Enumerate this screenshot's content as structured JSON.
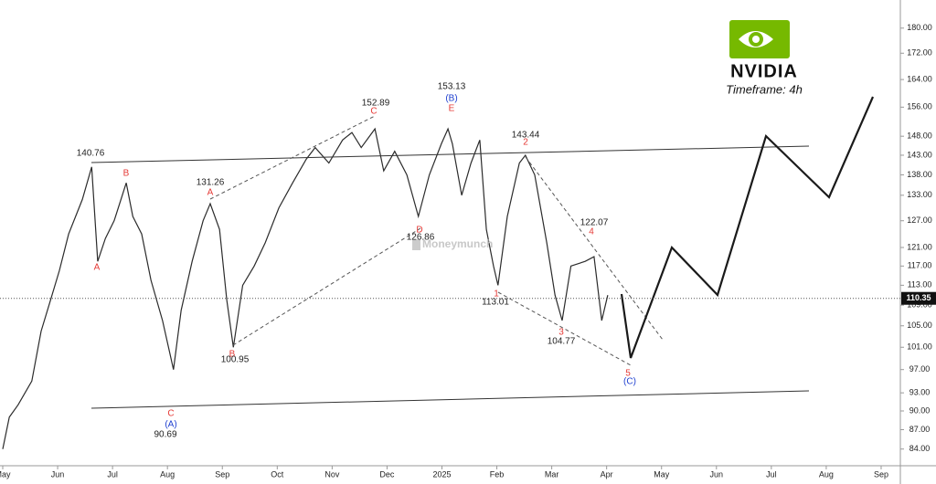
{
  "chart_data": {
    "type": "line",
    "brand": "NVIDIA",
    "subtitle": "Timeframe: 4h",
    "watermark": "Moneymunch",
    "log_scale": true,
    "color": "#2b2b2b",
    "x": [
      0.0,
      0.12,
      0.28,
      0.53,
      0.7,
      0.87,
      1.03,
      1.2,
      1.45,
      1.62,
      1.73,
      1.87,
      2.03,
      2.25,
      2.37,
      2.53,
      2.7,
      2.91,
      3.11,
      3.25,
      3.45,
      3.65,
      3.78,
      3.95,
      4.08,
      4.2,
      4.37,
      4.58,
      4.78,
      5.03,
      5.28,
      5.53,
      5.69,
      5.94,
      6.19,
      6.36,
      6.53,
      6.78,
      6.94,
      7.14,
      7.36,
      7.57,
      7.77,
      7.99,
      8.11,
      8.19,
      8.36,
      8.53,
      8.69,
      8.81,
      8.94,
      9.02,
      9.19,
      9.41,
      9.52,
      9.69,
      9.91,
      10.06,
      10.19,
      10.35,
      10.61,
      10.77,
      10.91,
      11.02
    ],
    "values": [
      84,
      89,
      91,
      95,
      104,
      110,
      116,
      124,
      132,
      140,
      118,
      123,
      127,
      136,
      128,
      124,
      114,
      106,
      97,
      108,
      118,
      127,
      131,
      125,
      110,
      101,
      113,
      117,
      122,
      130,
      136,
      142,
      145,
      141,
      147,
      149,
      145,
      150,
      139,
      144,
      138,
      128,
      138,
      146,
      150,
      146,
      133,
      141,
      147,
      125,
      117,
      113,
      128,
      141,
      143,
      138,
      122,
      111,
      106,
      117,
      118,
      119,
      106,
      111
    ],
    "current_price": 110.35,
    "current_price_label": "110.35",
    "xlim": [
      -0.05,
      16.35
    ],
    "xticks": [
      {
        "value": 0,
        "label": "May"
      },
      {
        "value": 1,
        "label": "Jun"
      },
      {
        "value": 2,
        "label": "Jul"
      },
      {
        "value": 3,
        "label": "Aug"
      },
      {
        "value": 4,
        "label": "Sep"
      },
      {
        "value": 5,
        "label": "Oct"
      },
      {
        "value": 6,
        "label": "Nov"
      },
      {
        "value": 7,
        "label": "Dec"
      },
      {
        "value": 8,
        "label": "2025"
      },
      {
        "value": 9,
        "label": "Feb"
      },
      {
        "value": 10,
        "label": "Mar"
      },
      {
        "value": 11,
        "label": "Apr"
      },
      {
        "value": 12,
        "label": "May"
      },
      {
        "value": 13,
        "label": "Jun"
      },
      {
        "value": 14,
        "label": "Jul"
      },
      {
        "value": 15,
        "label": "Aug"
      },
      {
        "value": 16,
        "label": "Sep"
      }
    ],
    "ylim": [
      81.5,
      189.4
    ],
    "yticks": [
      {
        "value": 84,
        "label": "84.00"
      },
      {
        "value": 87,
        "label": "87.00"
      },
      {
        "value": 90,
        "label": "90.00"
      },
      {
        "value": 93,
        "label": "93.00"
      },
      {
        "value": 97,
        "label": "97.00"
      },
      {
        "value": 101,
        "label": "101.00"
      },
      {
        "value": 105,
        "label": "105.00"
      },
      {
        "value": 109,
        "label": "109.00"
      },
      {
        "value": 113,
        "label": "113.00"
      },
      {
        "value": 117,
        "label": "117.00"
      },
      {
        "value": 121,
        "label": "121.00"
      },
      {
        "value": 127,
        "label": "127.00"
      },
      {
        "value": 133,
        "label": "133.00"
      },
      {
        "value": 138,
        "label": "138.00"
      },
      {
        "value": 143,
        "label": "143.00"
      },
      {
        "value": 148,
        "label": "148.00"
      },
      {
        "value": 156,
        "label": "156.00"
      },
      {
        "value": 164,
        "label": "164.00"
      },
      {
        "value": 172,
        "label": "172.00"
      },
      {
        "value": 180,
        "label": "180.00"
      }
    ],
    "annotations": [
      {
        "text": "140.76",
        "color": "#222222"
      },
      {
        "text": "B",
        "color": "#e53935"
      },
      {
        "text": "A",
        "color": "#e53935"
      },
      {
        "text": "C",
        "color": "#e53935"
      },
      {
        "text": "(A)",
        "color": "#1e3fd0"
      },
      {
        "text": "90.69",
        "color": "#222222"
      },
      {
        "text": "131.26",
        "color": "#222222"
      },
      {
        "text": "A",
        "color": "#e53935"
      },
      {
        "text": "B",
        "color": "#e53935"
      },
      {
        "text": "100.95",
        "color": "#222222"
      },
      {
        "text": "152.89",
        "color": "#222222"
      },
      {
        "text": "C",
        "color": "#e53935"
      },
      {
        "text": "D",
        "color": "#e53935"
      },
      {
        "text": "126.86",
        "color": "#222222"
      },
      {
        "text": "153.13",
        "color": "#222222"
      },
      {
        "text": "(B)",
        "color": "#1e3fd0"
      },
      {
        "text": "E",
        "color": "#e53935"
      },
      {
        "text": "143.44",
        "color": "#222222"
      },
      {
        "text": "2",
        "color": "#e53935"
      },
      {
        "text": "1",
        "color": "#e53935"
      },
      {
        "text": "113.01",
        "color": "#222222"
      },
      {
        "text": "3",
        "color": "#e53935"
      },
      {
        "text": "104.77",
        "color": "#222222"
      },
      {
        "text": "122.07",
        "color": "#222222"
      },
      {
        "text": "4",
        "color": "#e53935"
      },
      {
        "text": "5",
        "color": "#e53935"
      },
      {
        "text": "(C)",
        "color": "#1e3fd0"
      }
    ]
  }
}
